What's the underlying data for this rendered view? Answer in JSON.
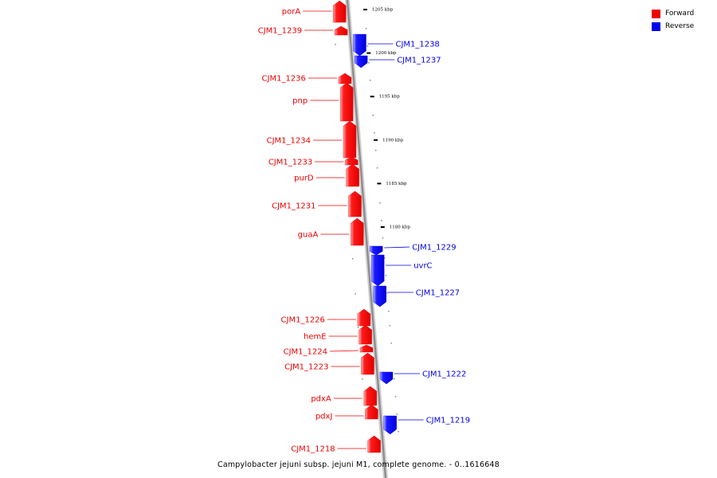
{
  "legend": {
    "forward_label": "Forward",
    "reverse_label": "Reverse",
    "forward_color": "#ee0000",
    "reverse_color": "#0000ee"
  },
  "caption": "Campylobacter jejuni subsp. jejuni M1, complete genome. - 0..1616648",
  "ticks": [
    {
      "kbp": 1205,
      "label": "1205 kbp"
    },
    {
      "kbp": 1200,
      "label": "1200 kbp"
    },
    {
      "kbp": 1195,
      "label": "1195 kbp"
    },
    {
      "kbp": 1190,
      "label": "1190 kbp"
    },
    {
      "kbp": 1185,
      "label": "1185 kbp"
    },
    {
      "kbp": 1180,
      "label": "1180 kbp"
    }
  ],
  "genes": [
    {
      "name": "porA",
      "strand": "forward"
    },
    {
      "name": "CJM1_1239",
      "strand": "forward"
    },
    {
      "name": "CJM1_1238",
      "strand": "reverse"
    },
    {
      "name": "CJM1_1237",
      "strand": "reverse"
    },
    {
      "name": "CJM1_1236",
      "strand": "forward"
    },
    {
      "name": "pnp",
      "strand": "forward"
    },
    {
      "name": "CJM1_1234",
      "strand": "forward"
    },
    {
      "name": "CJM1_1233",
      "strand": "forward"
    },
    {
      "name": "purD",
      "strand": "forward"
    },
    {
      "name": "CJM1_1231",
      "strand": "forward"
    },
    {
      "name": "guaA",
      "strand": "forward"
    },
    {
      "name": "CJM1_1229",
      "strand": "reverse"
    },
    {
      "name": "uvrC",
      "strand": "reverse"
    },
    {
      "name": "CJM1_1227",
      "strand": "reverse"
    },
    {
      "name": "CJM1_1226",
      "strand": "forward"
    },
    {
      "name": "hemE",
      "strand": "forward"
    },
    {
      "name": "CJM1_1224",
      "strand": "forward"
    },
    {
      "name": "CJM1_1223",
      "strand": "forward"
    },
    {
      "name": "CJM1_1222",
      "strand": "reverse"
    },
    {
      "name": "pdxA",
      "strand": "forward"
    },
    {
      "name": "pdxJ",
      "strand": "forward"
    },
    {
      "name": "CJM1_1219",
      "strand": "reverse"
    },
    {
      "name": "CJM1_1218",
      "strand": "forward"
    }
  ]
}
